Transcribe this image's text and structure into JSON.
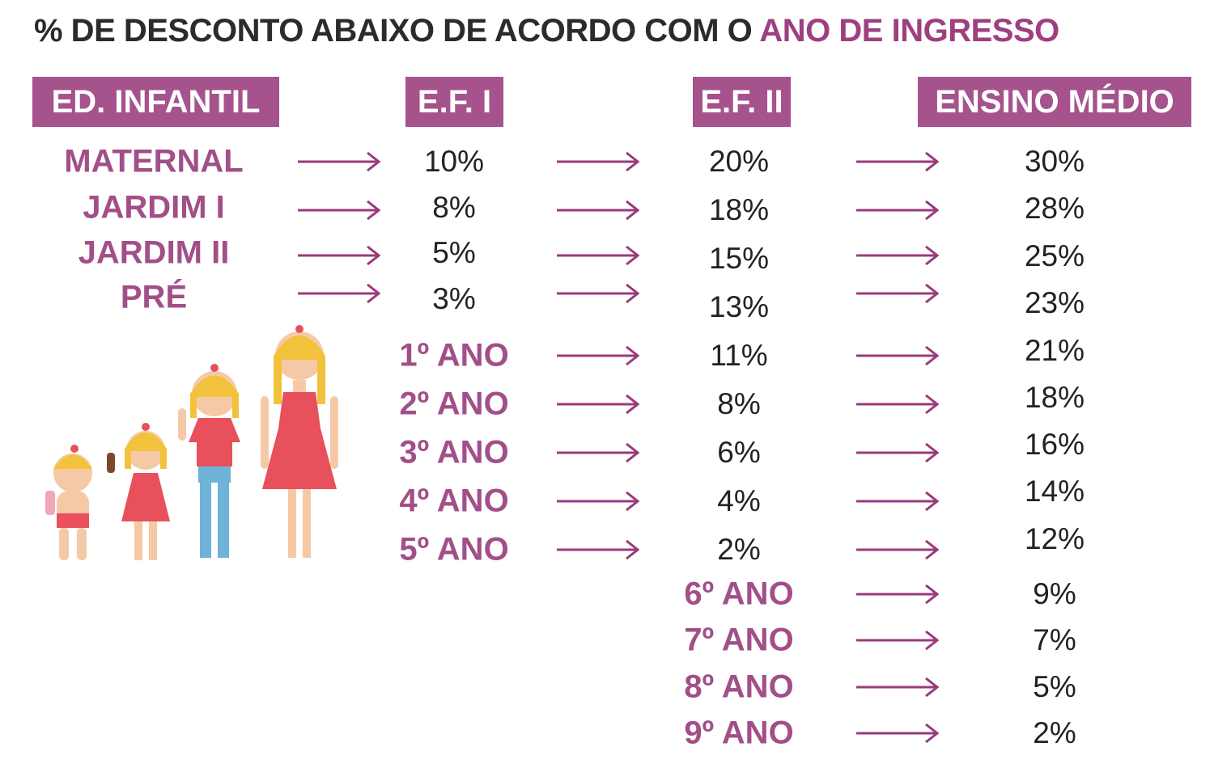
{
  "title": {
    "prefix": "% DE DESCONTO ABAIXO DE ACORDO COM O",
    "accent": "ANO DE INGRESSO"
  },
  "headers": [
    "ED. INFANTIL",
    "E.F. I",
    "E.F. II",
    "ENSINO MÉDIO"
  ],
  "ed_infantil": {
    "labels": [
      "MATERNAL",
      "JARDIM I",
      "JARDIM II",
      "PRÉ"
    ],
    "ef1": [
      "10%",
      "8%",
      "5%",
      "3%"
    ],
    "ef2": [
      "20%",
      "18%",
      "15%",
      "13%"
    ],
    "em": [
      "30%",
      "28%",
      "25%",
      "23%"
    ]
  },
  "ef1": {
    "labels": [
      "1º ANO",
      "2º ANO",
      "3º ANO",
      "4º ANO",
      "5º ANO"
    ],
    "ef2": [
      "11%",
      "8%",
      "6%",
      "4%",
      "2%"
    ],
    "em": [
      "21%",
      "18%",
      "16%",
      "14%",
      "12%"
    ]
  },
  "ef2": {
    "labels": [
      "6º ANO",
      "7º ANO",
      "8º ANO",
      "9º ANO"
    ],
    "em": [
      "9%",
      "7%",
      "5%",
      "2%"
    ]
  },
  "colors": {
    "header_bg": "#a6528d",
    "label": "#a24f89",
    "arrow": "#9b3a7c",
    "text": "#222222"
  }
}
